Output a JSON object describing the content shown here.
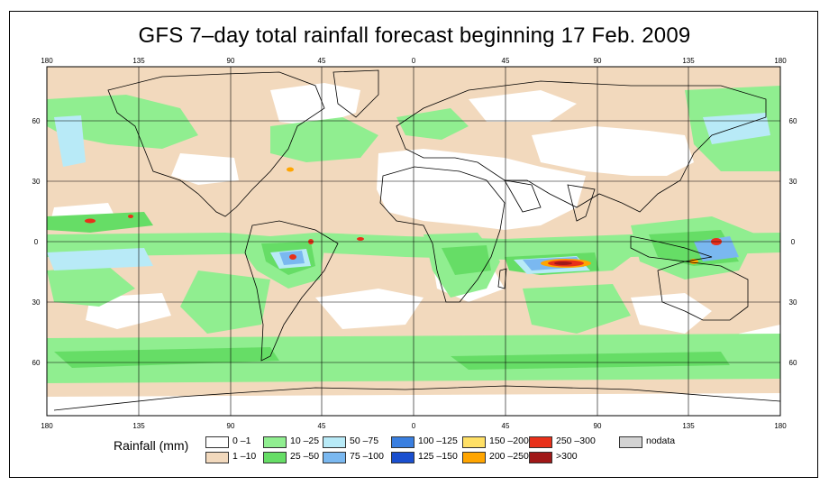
{
  "title": "GFS 7–day total rainfall forecast beginning 17 Feb. 2009",
  "lon_ticks": [
    "180",
    "135",
    "90",
    "45",
    "0",
    "45",
    "90",
    "135",
    "180"
  ],
  "lat_ticks": [
    "60",
    "30",
    "0",
    "30",
    "60"
  ],
  "legend": {
    "title": "Rainfall (mm)",
    "items": [
      {
        "label": "0 –1",
        "color": "#ffffff"
      },
      {
        "label": "1 –10",
        "color": "#f2d9bd"
      },
      {
        "label": "10 –25",
        "color": "#90ee90"
      },
      {
        "label": "25 –50",
        "color": "#66dd66"
      },
      {
        "label": "50 –75",
        "color": "#b8eaf7"
      },
      {
        "label": "75 –100",
        "color": "#7ab8f0"
      },
      {
        "label": "100 –125",
        "color": "#3a7fe0"
      },
      {
        "label": "125 –150",
        "color": "#1a4fcf"
      },
      {
        "label": "150 –200",
        "color": "#ffe066"
      },
      {
        "label": "200 –250",
        "color": "#ffa500"
      },
      {
        "label": "250 –300",
        "color": "#e8301a"
      },
      {
        "label": ">300",
        "color": "#a01818"
      },
      {
        "label": "nodata",
        "color": "#d3d3d3"
      }
    ]
  }
}
